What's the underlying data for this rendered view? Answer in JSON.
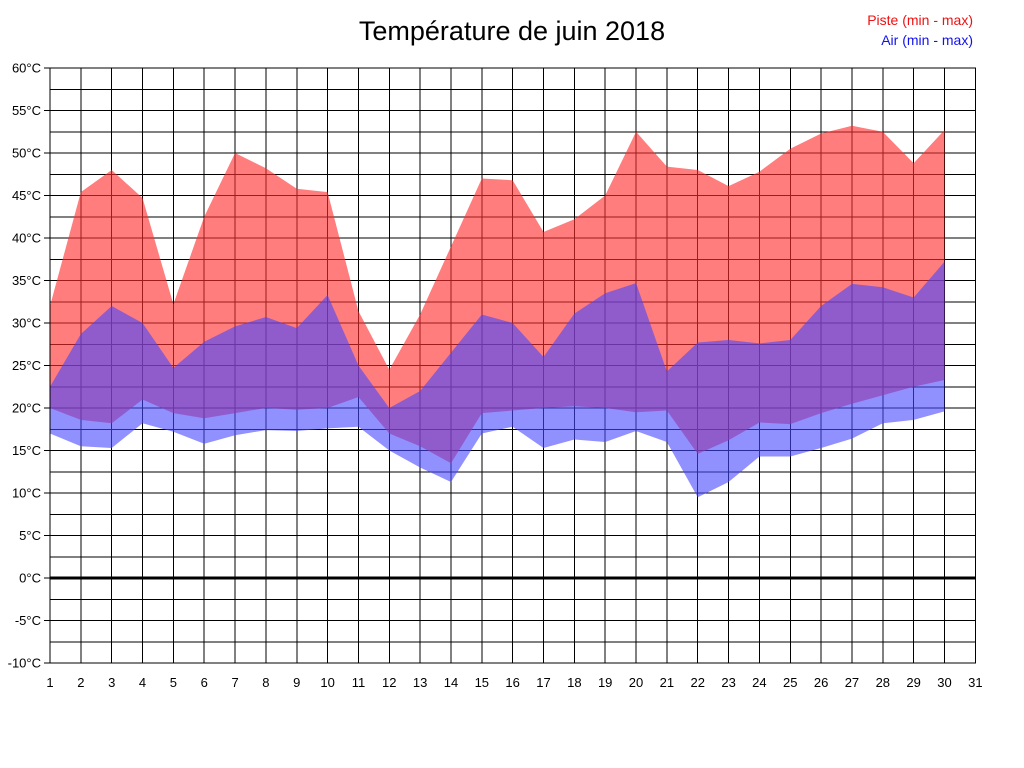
{
  "header": {
    "title": "Température de juin 2018"
  },
  "legend": {
    "piste": {
      "label": "Piste (min - max)",
      "color": "#ee1111"
    },
    "air": {
      "label": "Air (min - max)",
      "color": "#1111ee"
    }
  },
  "chart_data": {
    "type": "area",
    "title": "Température de juin 2018",
    "xlabel": "",
    "ylabel": "",
    "xlim": [
      1,
      31
    ],
    "ylim": [
      -10,
      60
    ],
    "y_grid_step": 2.5,
    "zero_line": 0,
    "grid": true,
    "legend_position": "top-right",
    "x": [
      1,
      2,
      3,
      4,
      5,
      6,
      7,
      8,
      9,
      10,
      11,
      12,
      13,
      14,
      15,
      16,
      17,
      18,
      19,
      20,
      21,
      22,
      23,
      24,
      25,
      26,
      27,
      28,
      29,
      30
    ],
    "series": [
      {
        "name": "Piste (min - max)",
        "fill": "rgba(255,45,45,0.62)",
        "min": [
          20,
          18.6,
          18.2,
          21,
          19.4,
          18.8,
          19.4,
          20,
          19.8,
          20,
          21.3,
          17,
          15.5,
          13.5,
          19.4,
          19.7,
          20,
          20.2,
          20,
          19.5,
          19.7,
          14.6,
          16.2,
          18.3,
          18.1,
          19.4,
          20.5,
          21.5,
          22.5,
          23.3
        ],
        "max": [
          32,
          45.4,
          48,
          44.7,
          32.2,
          42.5,
          50,
          48.2,
          45.8,
          45.4,
          31.4,
          24.5,
          31,
          39,
          47,
          46.8,
          40.7,
          42.2,
          45,
          52.5,
          48.4,
          48,
          46.1,
          47.8,
          50.5,
          52.3,
          53.2,
          52.5,
          48.8,
          52.7
        ]
      },
      {
        "name": "Air (min - max)",
        "fill": "rgba(70,70,255,0.60)",
        "min": [
          17,
          15.5,
          15.3,
          18.2,
          17.2,
          15.8,
          16.8,
          17.4,
          17.3,
          17.6,
          17.8,
          15,
          13,
          11.3,
          17,
          17.8,
          15.3,
          16.3,
          16,
          17.3,
          16,
          9.5,
          11.3,
          14.3,
          14.3,
          15.3,
          16.4,
          18.2,
          18.6,
          19.6
        ],
        "max": [
          22.5,
          28.7,
          32,
          30,
          24.7,
          27.8,
          29.6,
          30.7,
          29.4,
          33.3,
          25,
          20,
          22,
          26.5,
          31,
          30,
          26,
          31.1,
          33.5,
          34.7,
          24.3,
          27.7,
          28,
          27.6,
          28,
          32,
          34.6,
          34.2,
          33,
          37.2
        ]
      }
    ],
    "x_ticks": [
      1,
      2,
      3,
      4,
      5,
      6,
      7,
      8,
      9,
      10,
      11,
      12,
      13,
      14,
      15,
      16,
      17,
      18,
      19,
      20,
      21,
      22,
      23,
      24,
      25,
      26,
      27,
      28,
      29,
      30,
      31
    ],
    "x_tick_labels": [
      "1",
      "2",
      "3",
      "4",
      "5",
      "6",
      "7",
      "8",
      "9",
      "10",
      "11",
      "12",
      "13",
      "14",
      "15",
      "16",
      "17",
      "18",
      "19",
      "20",
      "21",
      "22",
      "23",
      "24",
      "25",
      "26",
      "27",
      "28",
      "29",
      "30",
      "31"
    ],
    "y_ticks": [
      {
        "v": 60,
        "label": "60°C"
      },
      {
        "v": 55,
        "label": "55°C"
      },
      {
        "v": 50,
        "label": "50°C"
      },
      {
        "v": 45,
        "label": "45°C"
      },
      {
        "v": 40,
        "label": "40°C"
      },
      {
        "v": 35,
        "label": "35°C"
      },
      {
        "v": 30,
        "label": "30°C"
      },
      {
        "v": 25,
        "label": "25°C"
      },
      {
        "v": 20,
        "label": "20°C"
      },
      {
        "v": 15,
        "label": "15°C"
      },
      {
        "v": 10,
        "label": "10°C"
      },
      {
        "v": 5,
        "label": "5°C"
      },
      {
        "v": 0,
        "label": "0°C"
      },
      {
        "v": -5,
        "label": "-5°C"
      },
      {
        "v": -10,
        "label": "-10°C"
      }
    ]
  }
}
